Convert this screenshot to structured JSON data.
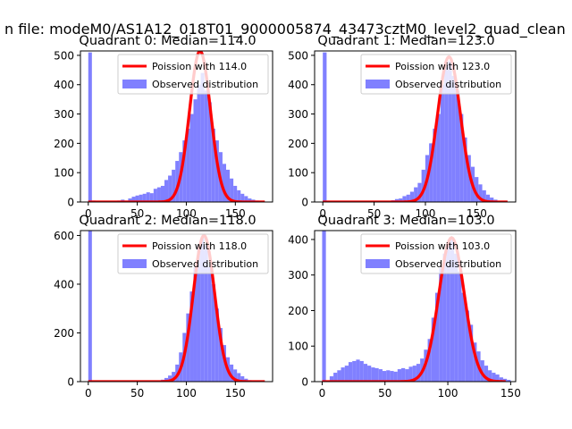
{
  "figure": {
    "suptitle": "n file: modeM0/AS1A12_018T01_9000005874_43473cztM0_level2_quad_clean"
  },
  "colors": {
    "histogram": "#8080ff",
    "poisson": "#ff0000"
  },
  "chart_data": [
    {
      "type": "bar",
      "title": "Quadrant 0: Median=114.0",
      "xlim": [
        -8,
        188
      ],
      "ylim": [
        0,
        515
      ],
      "xticks": [
        0,
        50,
        100,
        150
      ],
      "yticks": [
        0,
        100,
        200,
        300,
        400,
        500
      ],
      "legend": [
        "Poission with 114.0",
        "Observed distribution"
      ],
      "legend_position": "top-right",
      "poisson_mean": 114,
      "poisson_peak": 515,
      "bin_width": 3.7,
      "bins": [
        [
          0,
          510
        ],
        [
          3.7,
          5
        ],
        [
          7.4,
          4
        ],
        [
          11.1,
          3
        ],
        [
          14.8,
          4
        ],
        [
          18.5,
          3
        ],
        [
          22.2,
          3
        ],
        [
          25.9,
          4
        ],
        [
          29.6,
          5
        ],
        [
          33.3,
          8
        ],
        [
          37,
          5
        ],
        [
          40.7,
          12
        ],
        [
          44.4,
          18
        ],
        [
          48.1,
          22
        ],
        [
          51.8,
          25
        ],
        [
          55.5,
          28
        ],
        [
          59.2,
          33
        ],
        [
          62.9,
          30
        ],
        [
          66.6,
          45
        ],
        [
          70.3,
          50
        ],
        [
          74,
          55
        ],
        [
          77.7,
          75
        ],
        [
          81.4,
          90
        ],
        [
          85.1,
          110
        ],
        [
          88.8,
          140
        ],
        [
          92.5,
          170
        ],
        [
          96.2,
          210
        ],
        [
          99.9,
          250
        ],
        [
          103.6,
          300
        ],
        [
          107.3,
          350
        ],
        [
          111,
          400
        ],
        [
          114.7,
          440
        ],
        [
          118.4,
          380
        ],
        [
          122.1,
          340
        ],
        [
          125.8,
          250
        ],
        [
          129.5,
          210
        ],
        [
          133.2,
          170
        ],
        [
          136.9,
          130
        ],
        [
          140.6,
          110
        ],
        [
          144.3,
          80
        ],
        [
          148,
          55
        ],
        [
          151.7,
          40
        ],
        [
          155.4,
          28
        ],
        [
          159.1,
          20
        ],
        [
          162.8,
          12
        ],
        [
          166.5,
          8
        ],
        [
          170.2,
          5
        ]
      ]
    },
    {
      "type": "bar",
      "title": "Quadrant 1: Median=123.0",
      "xlim": [
        -8,
        188
      ],
      "ylim": [
        0,
        515
      ],
      "xticks": [
        0,
        50,
        100,
        150
      ],
      "yticks": [
        0,
        100,
        200,
        300,
        400,
        500
      ],
      "legend": [
        "Poission with 123.0",
        "Observed distribution"
      ],
      "legend_position": "top-right",
      "poisson_mean": 123,
      "poisson_peak": 495,
      "bin_width": 3.7,
      "bins": [
        [
          0,
          510
        ],
        [
          62.9,
          3
        ],
        [
          66.6,
          6
        ],
        [
          70.3,
          10
        ],
        [
          74,
          12
        ],
        [
          77.7,
          20
        ],
        [
          81.4,
          25
        ],
        [
          85.1,
          35
        ],
        [
          88.8,
          50
        ],
        [
          92.5,
          65
        ],
        [
          96.2,
          110
        ],
        [
          99.9,
          160
        ],
        [
          103.6,
          200
        ],
        [
          107.3,
          250
        ],
        [
          111,
          300
        ],
        [
          114.7,
          400
        ],
        [
          118.4,
          460
        ],
        [
          122.1,
          480
        ],
        [
          125.8,
          430
        ],
        [
          129.5,
          380
        ],
        [
          133.2,
          300
        ],
        [
          136.9,
          220
        ],
        [
          140.6,
          160
        ],
        [
          144.3,
          120
        ],
        [
          148,
          85
        ],
        [
          151.7,
          60
        ],
        [
          155.4,
          40
        ],
        [
          159.1,
          25
        ],
        [
          162.8,
          15
        ],
        [
          166.5,
          8
        ],
        [
          170.2,
          4
        ]
      ]
    },
    {
      "type": "bar",
      "title": "Quadrant 2: Median=118.0",
      "xlim": [
        -8,
        188
      ],
      "ylim": [
        0,
        620
      ],
      "xticks": [
        0,
        50,
        100,
        150
      ],
      "yticks": [
        0,
        200,
        400,
        600
      ],
      "legend": [
        "Poission with 118.0",
        "Observed distribution"
      ],
      "legend_position": "top-right",
      "poisson_mean": 118,
      "poisson_peak": 600,
      "bin_width": 3.7,
      "bins": [
        [
          0,
          620
        ],
        [
          70.3,
          4
        ],
        [
          74,
          8
        ],
        [
          77.7,
          15
        ],
        [
          81.4,
          25
        ],
        [
          85.1,
          40
        ],
        [
          88.8,
          70
        ],
        [
          92.5,
          120
        ],
        [
          96.2,
          200
        ],
        [
          99.9,
          280
        ],
        [
          103.6,
          370
        ],
        [
          107.3,
          470
        ],
        [
          111,
          560
        ],
        [
          114.7,
          590
        ],
        [
          118.4,
          560
        ],
        [
          122.1,
          470
        ],
        [
          125.8,
          400
        ],
        [
          129.5,
          300
        ],
        [
          133.2,
          220
        ],
        [
          136.9,
          150
        ],
        [
          140.6,
          100
        ],
        [
          144.3,
          70
        ],
        [
          148,
          50
        ],
        [
          151.7,
          35
        ],
        [
          155.4,
          22
        ],
        [
          159.1,
          12
        ],
        [
          162.8,
          6
        ]
      ]
    },
    {
      "type": "bar",
      "title": "Quadrant 3: Median=103.0",
      "xlim": [
        -6,
        154
      ],
      "ylim": [
        0,
        425
      ],
      "xticks": [
        0,
        50,
        100,
        150
      ],
      "yticks": [
        0,
        100,
        200,
        300,
        400
      ],
      "legend": [
        "Poission with 103.0",
        "Observed distribution"
      ],
      "legend_position": "top-right",
      "poisson_mean": 103,
      "poisson_peak": 405,
      "bin_width": 3.0,
      "bins": [
        [
          0,
          425
        ],
        [
          6,
          15
        ],
        [
          9,
          25
        ],
        [
          12,
          32
        ],
        [
          15,
          40
        ],
        [
          18,
          45
        ],
        [
          21,
          55
        ],
        [
          24,
          58
        ],
        [
          27,
          62
        ],
        [
          30,
          58
        ],
        [
          33,
          50
        ],
        [
          36,
          45
        ],
        [
          39,
          40
        ],
        [
          42,
          38
        ],
        [
          45,
          35
        ],
        [
          48,
          30
        ],
        [
          51,
          32
        ],
        [
          54,
          30
        ],
        [
          57,
          28
        ],
        [
          60,
          35
        ],
        [
          63,
          38
        ],
        [
          66,
          35
        ],
        [
          69,
          42
        ],
        [
          72,
          45
        ],
        [
          75,
          50
        ],
        [
          78,
          65
        ],
        [
          81,
          90
        ],
        [
          84,
          120
        ],
        [
          87,
          180
        ],
        [
          90,
          250
        ],
        [
          93,
          320
        ],
        [
          96,
          360
        ],
        [
          99,
          390
        ],
        [
          102,
          400
        ],
        [
          105,
          360
        ],
        [
          108,
          310
        ],
        [
          111,
          250
        ],
        [
          114,
          200
        ],
        [
          117,
          160
        ],
        [
          120,
          110
        ],
        [
          123,
          85
        ],
        [
          126,
          60
        ],
        [
          129,
          45
        ],
        [
          132,
          32
        ],
        [
          135,
          25
        ],
        [
          138,
          20
        ],
        [
          141,
          12
        ],
        [
          144,
          8
        ],
        [
          147,
          5
        ]
      ]
    }
  ]
}
